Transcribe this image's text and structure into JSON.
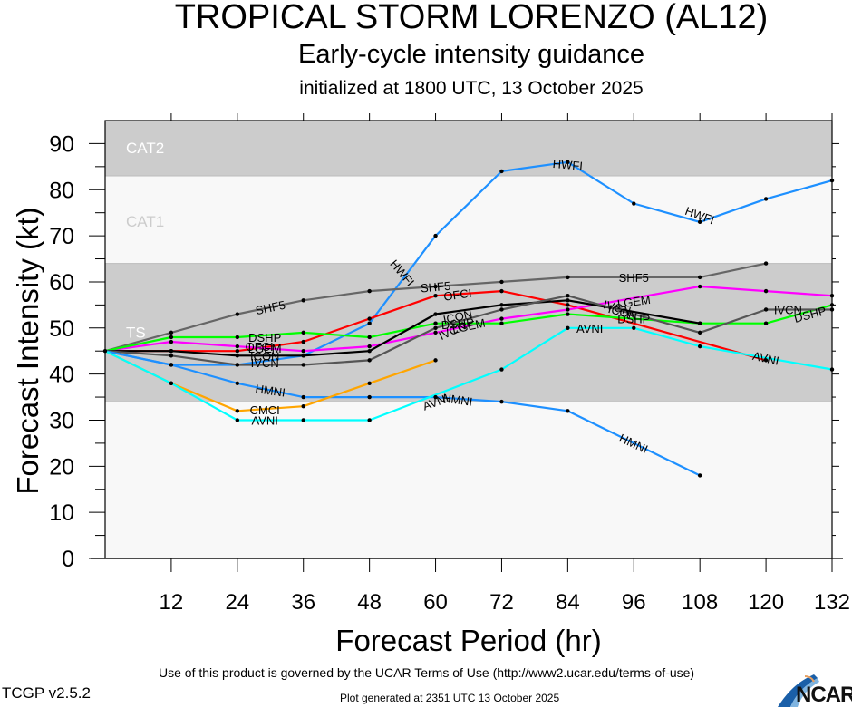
{
  "header": {
    "title": "TROPICAL STORM LORENZO (AL12)",
    "subtitle": "Early-cycle intensity guidance",
    "init_line": "initialized at 1800 UTC, 13 October 2025"
  },
  "footer": {
    "terms": "Use of this product is governed by the UCAR Terms of Use (http://www2.ucar.edu/terms-of-use)",
    "version": "TCGP v2.5.2",
    "generated": "Plot generated at 2351 UTC   13 October 2025",
    "logo_text": "NCAR"
  },
  "chart_data": {
    "type": "line",
    "title": "TROPICAL STORM LORENZO (AL12)",
    "subtitle": "Early-cycle intensity guidance",
    "xlabel": "Forecast Period (hr)",
    "ylabel": "Forecast Intensity (kt)",
    "xlim": [
      0,
      132
    ],
    "ylim": [
      0,
      95
    ],
    "xticks": [
      12,
      24,
      36,
      48,
      60,
      72,
      84,
      96,
      108,
      120,
      132
    ],
    "yticks": [
      0,
      10,
      20,
      30,
      40,
      50,
      60,
      70,
      80,
      90
    ],
    "grid": false,
    "bands": [
      {
        "label": "TS",
        "from": 34,
        "to": 64,
        "color": "#cccccc",
        "label_color": "#ffffff"
      },
      {
        "label": "CAT1",
        "from": 64,
        "to": 83,
        "color": "#f8f8f8",
        "label_color": "#cccccc"
      },
      {
        "label": "CAT2",
        "from": 83,
        "to": 95,
        "color": "#cccccc",
        "label_color": "#ffffff"
      }
    ],
    "series": [
      {
        "name": "HWFI",
        "color": "#1e90ff",
        "x": [
          0,
          12,
          24,
          36,
          48,
          60,
          72,
          84,
          96,
          108,
          120,
          132
        ],
        "y": [
          45,
          42,
          42,
          44,
          51,
          70,
          84,
          86,
          77,
          73,
          78,
          82
        ],
        "label_at": [
          [
            54,
            62,
            50
          ],
          [
            84,
            85.5,
            5
          ],
          [
            108,
            74.5,
            20
          ]
        ]
      },
      {
        "name": "SHF5",
        "color": "#666666",
        "x": [
          0,
          12,
          24,
          36,
          48,
          60,
          72,
          84,
          108,
          120
        ],
        "y": [
          45,
          49,
          53,
          56,
          58,
          59,
          60,
          61,
          61,
          64
        ],
        "label_at": [
          [
            30,
            54.5,
            -12
          ],
          [
            60,
            59,
            -5
          ],
          [
            96,
            61,
            0
          ]
        ]
      },
      {
        "name": "OFCI",
        "color": "#ff0000",
        "x": [
          0,
          12,
          24,
          36,
          48,
          60,
          72,
          84,
          120
        ],
        "y": [
          45,
          45,
          45,
          47,
          52,
          57,
          58,
          55,
          43
        ],
        "label_at": [
          [
            64,
            57.3,
            -8
          ],
          [
            28,
            46,
            0
          ]
        ]
      },
      {
        "name": "LGEM",
        "color": "#ff00ff",
        "x": [
          0,
          12,
          24,
          36,
          48,
          60,
          72,
          84,
          108,
          120,
          132
        ],
        "y": [
          45,
          47,
          46,
          45,
          46,
          49,
          52,
          54,
          59,
          58,
          57
        ],
        "label_at": [
          [
            66,
            50.5,
            -12
          ],
          [
            96,
            55.8,
            -8
          ],
          [
            29,
            45.6,
            0
          ]
        ]
      },
      {
        "name": "DSHP",
        "color": "#00ff00",
        "x": [
          0,
          12,
          24,
          36,
          48,
          60,
          72,
          84,
          108,
          120,
          132
        ],
        "y": [
          45,
          48,
          48,
          49,
          48,
          51,
          51,
          53,
          51,
          51,
          55
        ],
        "label_at": [
          [
            29,
            48,
            0
          ],
          [
            64,
            51,
            -5
          ],
          [
            96,
            52,
            0
          ],
          [
            128,
            53,
            -15
          ]
        ]
      },
      {
        "name": "ICON",
        "color": "#000000",
        "x": [
          0,
          12,
          24,
          36,
          48,
          60,
          72,
          84,
          108
        ],
        "y": [
          45,
          45,
          44,
          44,
          45,
          53,
          55,
          56,
          51
        ],
        "label_at": [
          [
            29,
            44,
            0
          ],
          [
            64,
            52.5,
            -12
          ],
          [
            94,
            53.5,
            15
          ]
        ]
      },
      {
        "name": "IVCN",
        "color": "#555555",
        "x": [
          0,
          12,
          24,
          36,
          48,
          60,
          72,
          84,
          108,
          120,
          132
        ],
        "y": [
          45,
          44,
          42,
          42,
          43,
          50,
          54,
          57,
          49,
          54,
          54
        ],
        "label_at": [
          [
            29,
            42.5,
            0
          ],
          [
            63,
            49.5,
            -25
          ],
          [
            93,
            54.5,
            15
          ],
          [
            124,
            54,
            0
          ]
        ]
      },
      {
        "name": "HMNI",
        "color": "#1e90ff",
        "x": [
          0,
          12,
          24,
          36,
          48,
          60,
          72,
          84,
          108
        ],
        "y": [
          45,
          42,
          38,
          35,
          35,
          35,
          34,
          32,
          18
        ],
        "label_at": [
          [
            30,
            36.5,
            8
          ],
          [
            64,
            34.5,
            8
          ],
          [
            96,
            25,
            25
          ]
        ]
      },
      {
        "name": "CMCI",
        "color": "#ffa500",
        "x": [
          0,
          12,
          24,
          36,
          48,
          60
        ],
        "y": [
          45,
          38,
          32,
          33,
          38,
          43
        ],
        "label_at": [
          [
            29,
            32.3,
            0
          ]
        ]
      },
      {
        "name": "AVNI",
        "color": "#00ffff",
        "x": [
          0,
          12,
          24,
          36,
          48,
          72,
          84,
          96,
          108,
          132
        ],
        "y": [
          45,
          38,
          30,
          30,
          30,
          41,
          50,
          50,
          46,
          41
        ],
        "label_at": [
          [
            29,
            30,
            0
          ],
          [
            60,
            34,
            -20
          ],
          [
            88,
            50,
            0
          ],
          [
            120,
            43.5,
            12
          ]
        ]
      }
    ]
  }
}
